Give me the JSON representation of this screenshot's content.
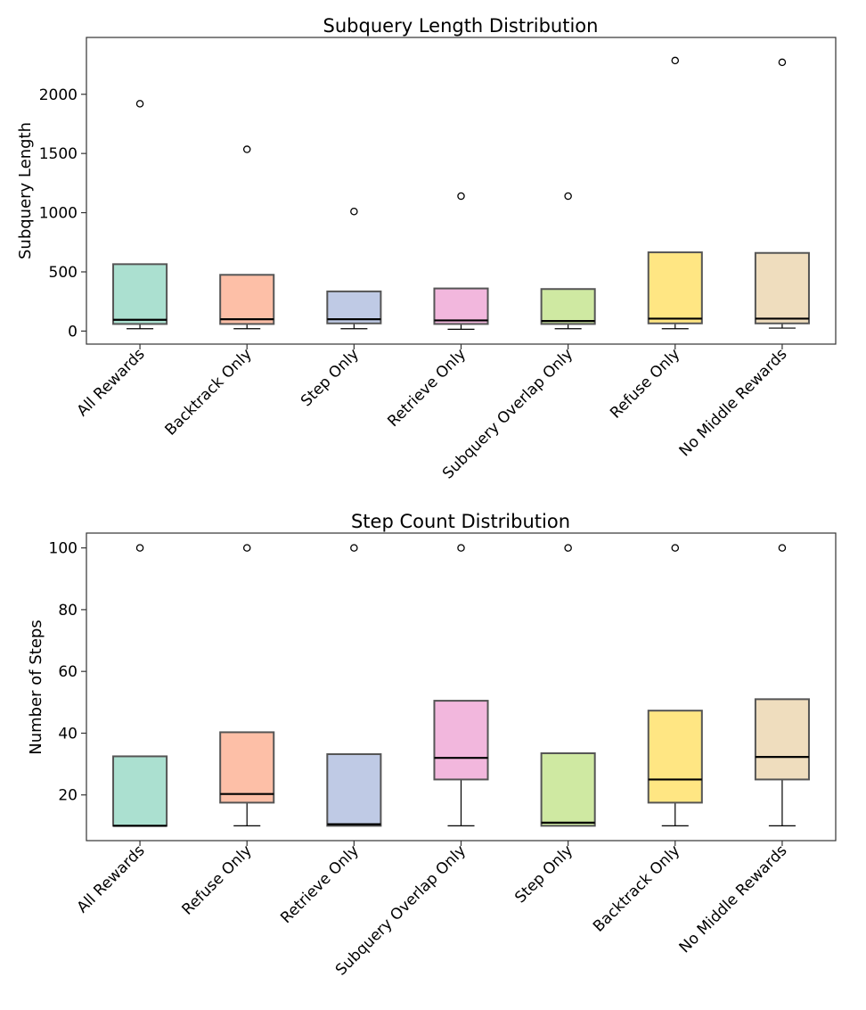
{
  "chart_data": [
    {
      "type": "box",
      "title": "Subquery Length Distribution",
      "xlabel": "",
      "ylabel": "Subquery Length",
      "ylim": [
        -110,
        2480
      ],
      "yticks": [
        0,
        500,
        1000,
        1500,
        2000
      ],
      "ytick_labels": [
        "0",
        "500",
        "1000",
        "1500",
        "2000"
      ],
      "categories": [
        "All Rewards",
        "Backtrack Only",
        "Step Only",
        "Retrieve Only",
        "Subquery Overlap Only",
        "Refuse Only",
        "No Middle Rewards"
      ],
      "colors": [
        "#8fd5c0",
        "#fca98a",
        "#a9b8dc",
        "#ee9fd2",
        "#bfe283",
        "#ffde59",
        "#ead2a8"
      ],
      "boxes": [
        {
          "whisker_low": 20,
          "q1": 60,
          "median": 95,
          "q3": 565,
          "whisker_high": 565,
          "outliers": [
            1920
          ]
        },
        {
          "whisker_low": 20,
          "q1": 60,
          "median": 100,
          "q3": 475,
          "whisker_high": 475,
          "outliers": [
            1535
          ]
        },
        {
          "whisker_low": 20,
          "q1": 65,
          "median": 100,
          "q3": 335,
          "whisker_high": 335,
          "outliers": [
            1010
          ]
        },
        {
          "whisker_low": 15,
          "q1": 60,
          "median": 90,
          "q3": 360,
          "whisker_high": 360,
          "outliers": [
            1140
          ]
        },
        {
          "whisker_low": 20,
          "q1": 60,
          "median": 85,
          "q3": 355,
          "whisker_high": 355,
          "outliers": [
            1140
          ]
        },
        {
          "whisker_low": 20,
          "q1": 65,
          "median": 105,
          "q3": 665,
          "whisker_high": 665,
          "outliers": [
            2285
          ]
        },
        {
          "whisker_low": 25,
          "q1": 65,
          "median": 105,
          "q3": 660,
          "whisker_high": 660,
          "outliers": [
            2270
          ]
        }
      ]
    },
    {
      "type": "box",
      "title": "Step Count Distribution",
      "xlabel": "",
      "ylabel": "Number of Steps",
      "ylim": [
        5.2,
        104.8
      ],
      "yticks": [
        20,
        40,
        60,
        80,
        100
      ],
      "ytick_labels": [
        "20",
        "40",
        "60",
        "80",
        "100"
      ],
      "categories": [
        "All Rewards",
        "Refuse Only",
        "Retrieve Only",
        "Subquery Overlap Only",
        "Step Only",
        "Backtrack Only",
        "No Middle Rewards"
      ],
      "colors": [
        "#8fd5c0",
        "#fca98a",
        "#a9b8dc",
        "#ee9fd2",
        "#bfe283",
        "#ffde59",
        "#ead2a8"
      ],
      "boxes": [
        {
          "whisker_low": 10,
          "q1": 10,
          "median": 10,
          "q3": 32.5,
          "whisker_high": 32.5,
          "outliers": [
            100
          ]
        },
        {
          "whisker_low": 10,
          "q1": 17.5,
          "median": 20.3,
          "q3": 40.3,
          "whisker_high": 40.3,
          "outliers": [
            100
          ]
        },
        {
          "whisker_low": 10,
          "q1": 10,
          "median": 10.5,
          "q3": 33.2,
          "whisker_high": 33.2,
          "outliers": [
            100
          ]
        },
        {
          "whisker_low": 10,
          "q1": 25,
          "median": 32,
          "q3": 50.5,
          "whisker_high": 50.5,
          "outliers": [
            100
          ]
        },
        {
          "whisker_low": 10,
          "q1": 10,
          "median": 11,
          "q3": 33.5,
          "whisker_high": 33.5,
          "outliers": [
            100
          ]
        },
        {
          "whisker_low": 10,
          "q1": 17.5,
          "median": 25,
          "q3": 47.3,
          "whisker_high": 47.3,
          "outliers": [
            100
          ]
        },
        {
          "whisker_low": 10,
          "q1": 25,
          "median": 32.3,
          "q3": 51,
          "whisker_high": 51,
          "outliers": [
            100
          ]
        }
      ]
    }
  ]
}
